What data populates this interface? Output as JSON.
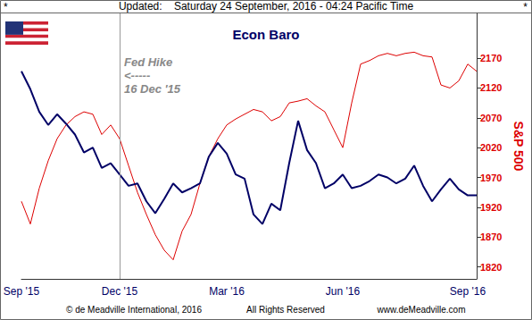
{
  "chart_data": {
    "type": "line",
    "title": "Econ Baro",
    "header": {
      "left": "*",
      "text": "Updated:    Saturday 24 September, 2016 - 04:24 Pacific Time",
      "right": "*"
    },
    "footer": [
      "© de Meadville International, 2016",
      "All Rights Reserved",
      "www.deMeadville.com"
    ],
    "y_label": "S&P 500",
    "categories": [
      "Sep '15",
      null,
      null,
      null,
      null,
      null,
      null,
      null,
      null,
      null,
      null,
      "Dec '15",
      null,
      null,
      null,
      null,
      null,
      null,
      null,
      null,
      null,
      null,
      null,
      "Mar '16",
      null,
      null,
      null,
      null,
      null,
      null,
      null,
      null,
      null,
      null,
      null,
      null,
      "Jun '16",
      null,
      null,
      null,
      null,
      null,
      null,
      null,
      null,
      null,
      null,
      null,
      null,
      null,
      "Sep '16",
      null
    ],
    "series": [
      {
        "name": "Econ Baro",
        "color": "#000066",
        "values": [
          2148,
          2118,
          2080,
          2058,
          2076,
          2060,
          2042,
          2012,
          2020,
          1986,
          1994,
          1975,
          1956,
          1960,
          1930,
          1910,
          1934,
          1960,
          1945,
          1952,
          1960,
          2005,
          2028,
          2010,
          1975,
          1968,
          1908,
          1892,
          1926,
          1915,
          1994,
          2065,
          2016,
          1994,
          1952,
          1960,
          1975,
          1952,
          1956,
          1964,
          1975,
          1970,
          1960,
          1968,
          1990,
          1956,
          1930,
          1950,
          1968,
          1950,
          1940,
          1940
        ]
      },
      {
        "name": "S&P 500",
        "color": "#dd0000",
        "values": [
          1930,
          1892,
          1952,
          1998,
          2035,
          2058,
          2072,
          2080,
          2076,
          2042,
          2058,
          2035,
          1990,
          1945,
          1908,
          1874,
          1848,
          1832,
          1880,
          1908,
          1960,
          2005,
          2035,
          2058,
          2068,
          2076,
          2084,
          2080,
          2065,
          2072,
          2095,
          2098,
          2102,
          2090,
          2080,
          2050,
          2020,
          2095,
          2160,
          2166,
          2174,
          2178,
          2174,
          2178,
          2180,
          2174,
          2172,
          2125,
          2120,
          2132,
          2160,
          2148
        ]
      }
    ],
    "ylim": [
      1800,
      2245
    ],
    "yticks": [
      1820,
      1870,
      1920,
      1970,
      2020,
      2070,
      2120,
      2170
    ],
    "grid": false,
    "vline": {
      "category": "Dec '15",
      "label": [
        "Fed Hike",
        "<-----",
        "16 Dec '15"
      ]
    }
  }
}
